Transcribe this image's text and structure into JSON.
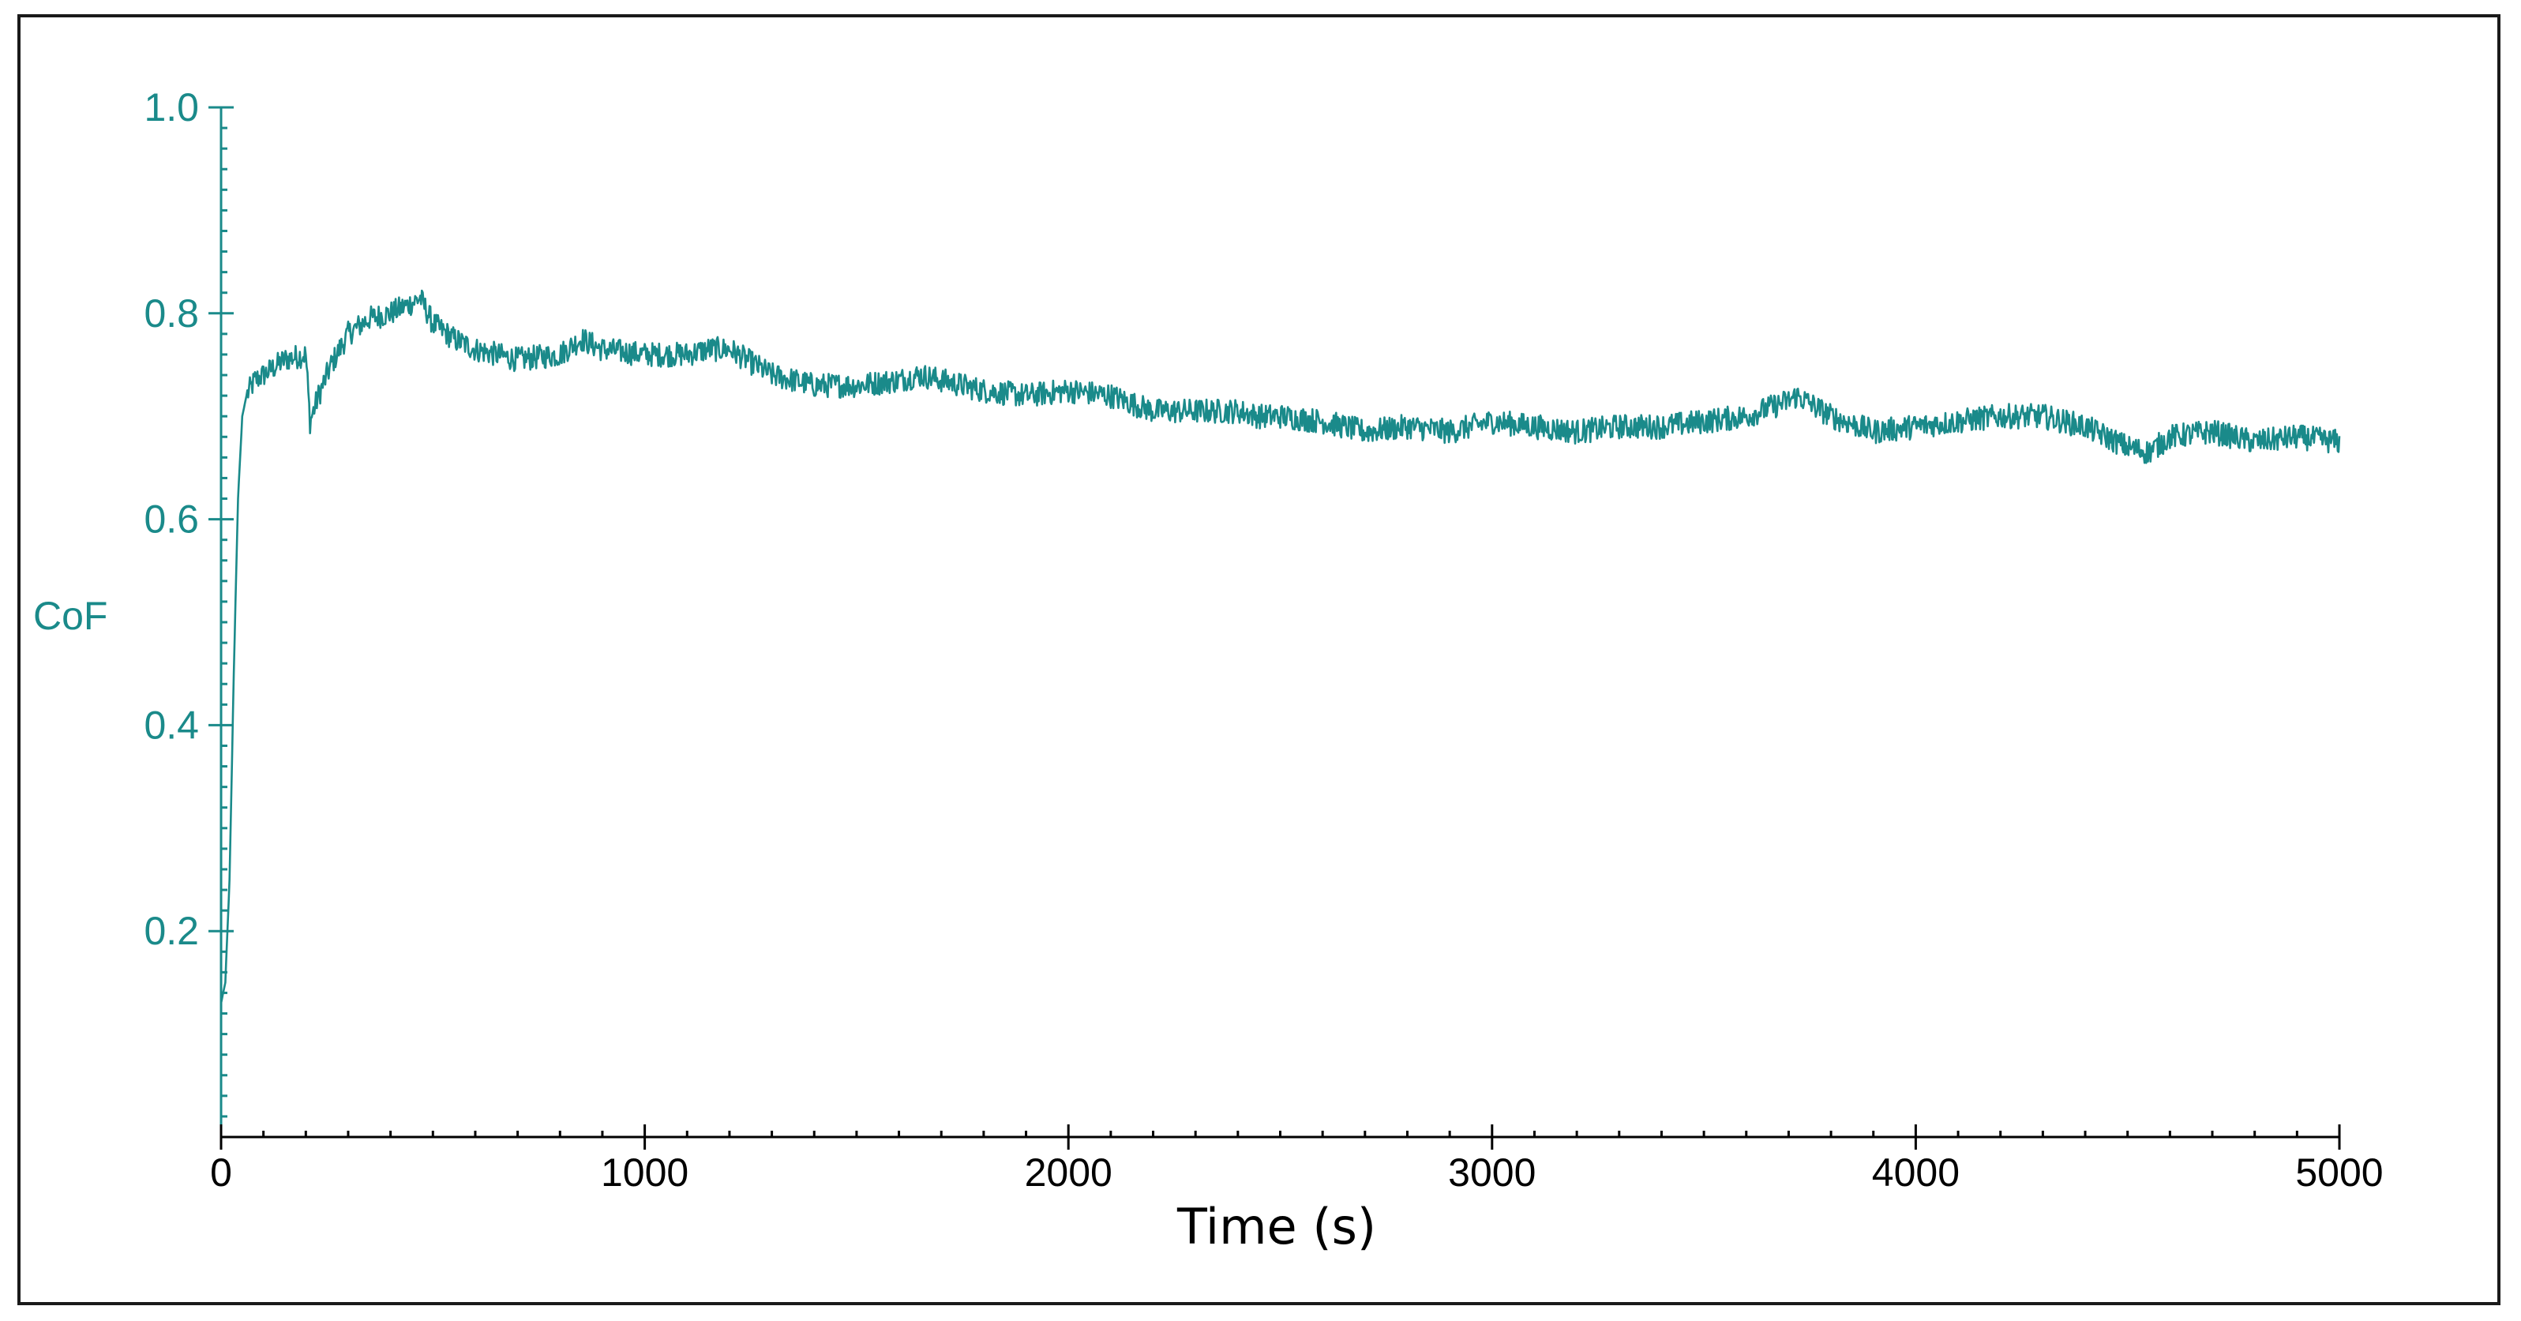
{
  "chart_data": {
    "type": "line",
    "title": "",
    "xlabel": "Time (s)",
    "ylabel": "CoF",
    "xlim": [
      0,
      5000
    ],
    "ylim": [
      0,
      1.0
    ],
    "x_ticks": [
      0,
      1000,
      2000,
      3000,
      4000,
      5000
    ],
    "x_tick_labels": [
      "0",
      "1000",
      "2000",
      "3000",
      "4000",
      "5000"
    ],
    "y_ticks": [
      0.2,
      0.4,
      0.6,
      0.8,
      1.0
    ],
    "y_tick_labels": [
      "0.2",
      "0.4",
      "0.6",
      "0.8",
      "1.0"
    ],
    "grid": false,
    "legend": "none",
    "colors": {
      "series": "#1a8a8a",
      "y_axis": "#1a8a8a",
      "x_axis": "#000000"
    },
    "series": [
      {
        "x": [
          0,
          10,
          20,
          30,
          40,
          50,
          60,
          80,
          100,
          150,
          200,
          210,
          230,
          260,
          300,
          350,
          400,
          450,
          470,
          500,
          550,
          600,
          700,
          800,
          850,
          900,
          1000,
          1100,
          1150,
          1200,
          1300,
          1400,
          1500,
          1600,
          1650,
          1700,
          1800,
          1900,
          2000,
          2100,
          2200,
          2300,
          2400,
          2450,
          2500,
          2600,
          2700,
          2800,
          2900,
          3000,
          3100,
          3200,
          3300,
          3400,
          3500,
          3600,
          3700,
          3720,
          3800,
          3900,
          4000,
          4100,
          4200,
          4300,
          4400,
          4500,
          4550,
          4600,
          4700,
          4800,
          4900,
          5000
        ],
        "y": [
          0.13,
          0.15,
          0.25,
          0.45,
          0.62,
          0.7,
          0.72,
          0.735,
          0.74,
          0.755,
          0.76,
          0.695,
          0.72,
          0.75,
          0.78,
          0.795,
          0.8,
          0.81,
          0.815,
          0.79,
          0.775,
          0.765,
          0.755,
          0.76,
          0.775,
          0.765,
          0.76,
          0.76,
          0.765,
          0.765,
          0.74,
          0.73,
          0.73,
          0.735,
          0.74,
          0.735,
          0.725,
          0.72,
          0.725,
          0.72,
          0.705,
          0.705,
          0.705,
          0.7,
          0.7,
          0.695,
          0.685,
          0.69,
          0.685,
          0.695,
          0.69,
          0.685,
          0.69,
          0.69,
          0.695,
          0.7,
          0.715,
          0.72,
          0.7,
          0.685,
          0.69,
          0.695,
          0.7,
          0.7,
          0.69,
          0.67,
          0.665,
          0.68,
          0.685,
          0.675,
          0.68,
          0.675
        ]
      }
    ]
  }
}
